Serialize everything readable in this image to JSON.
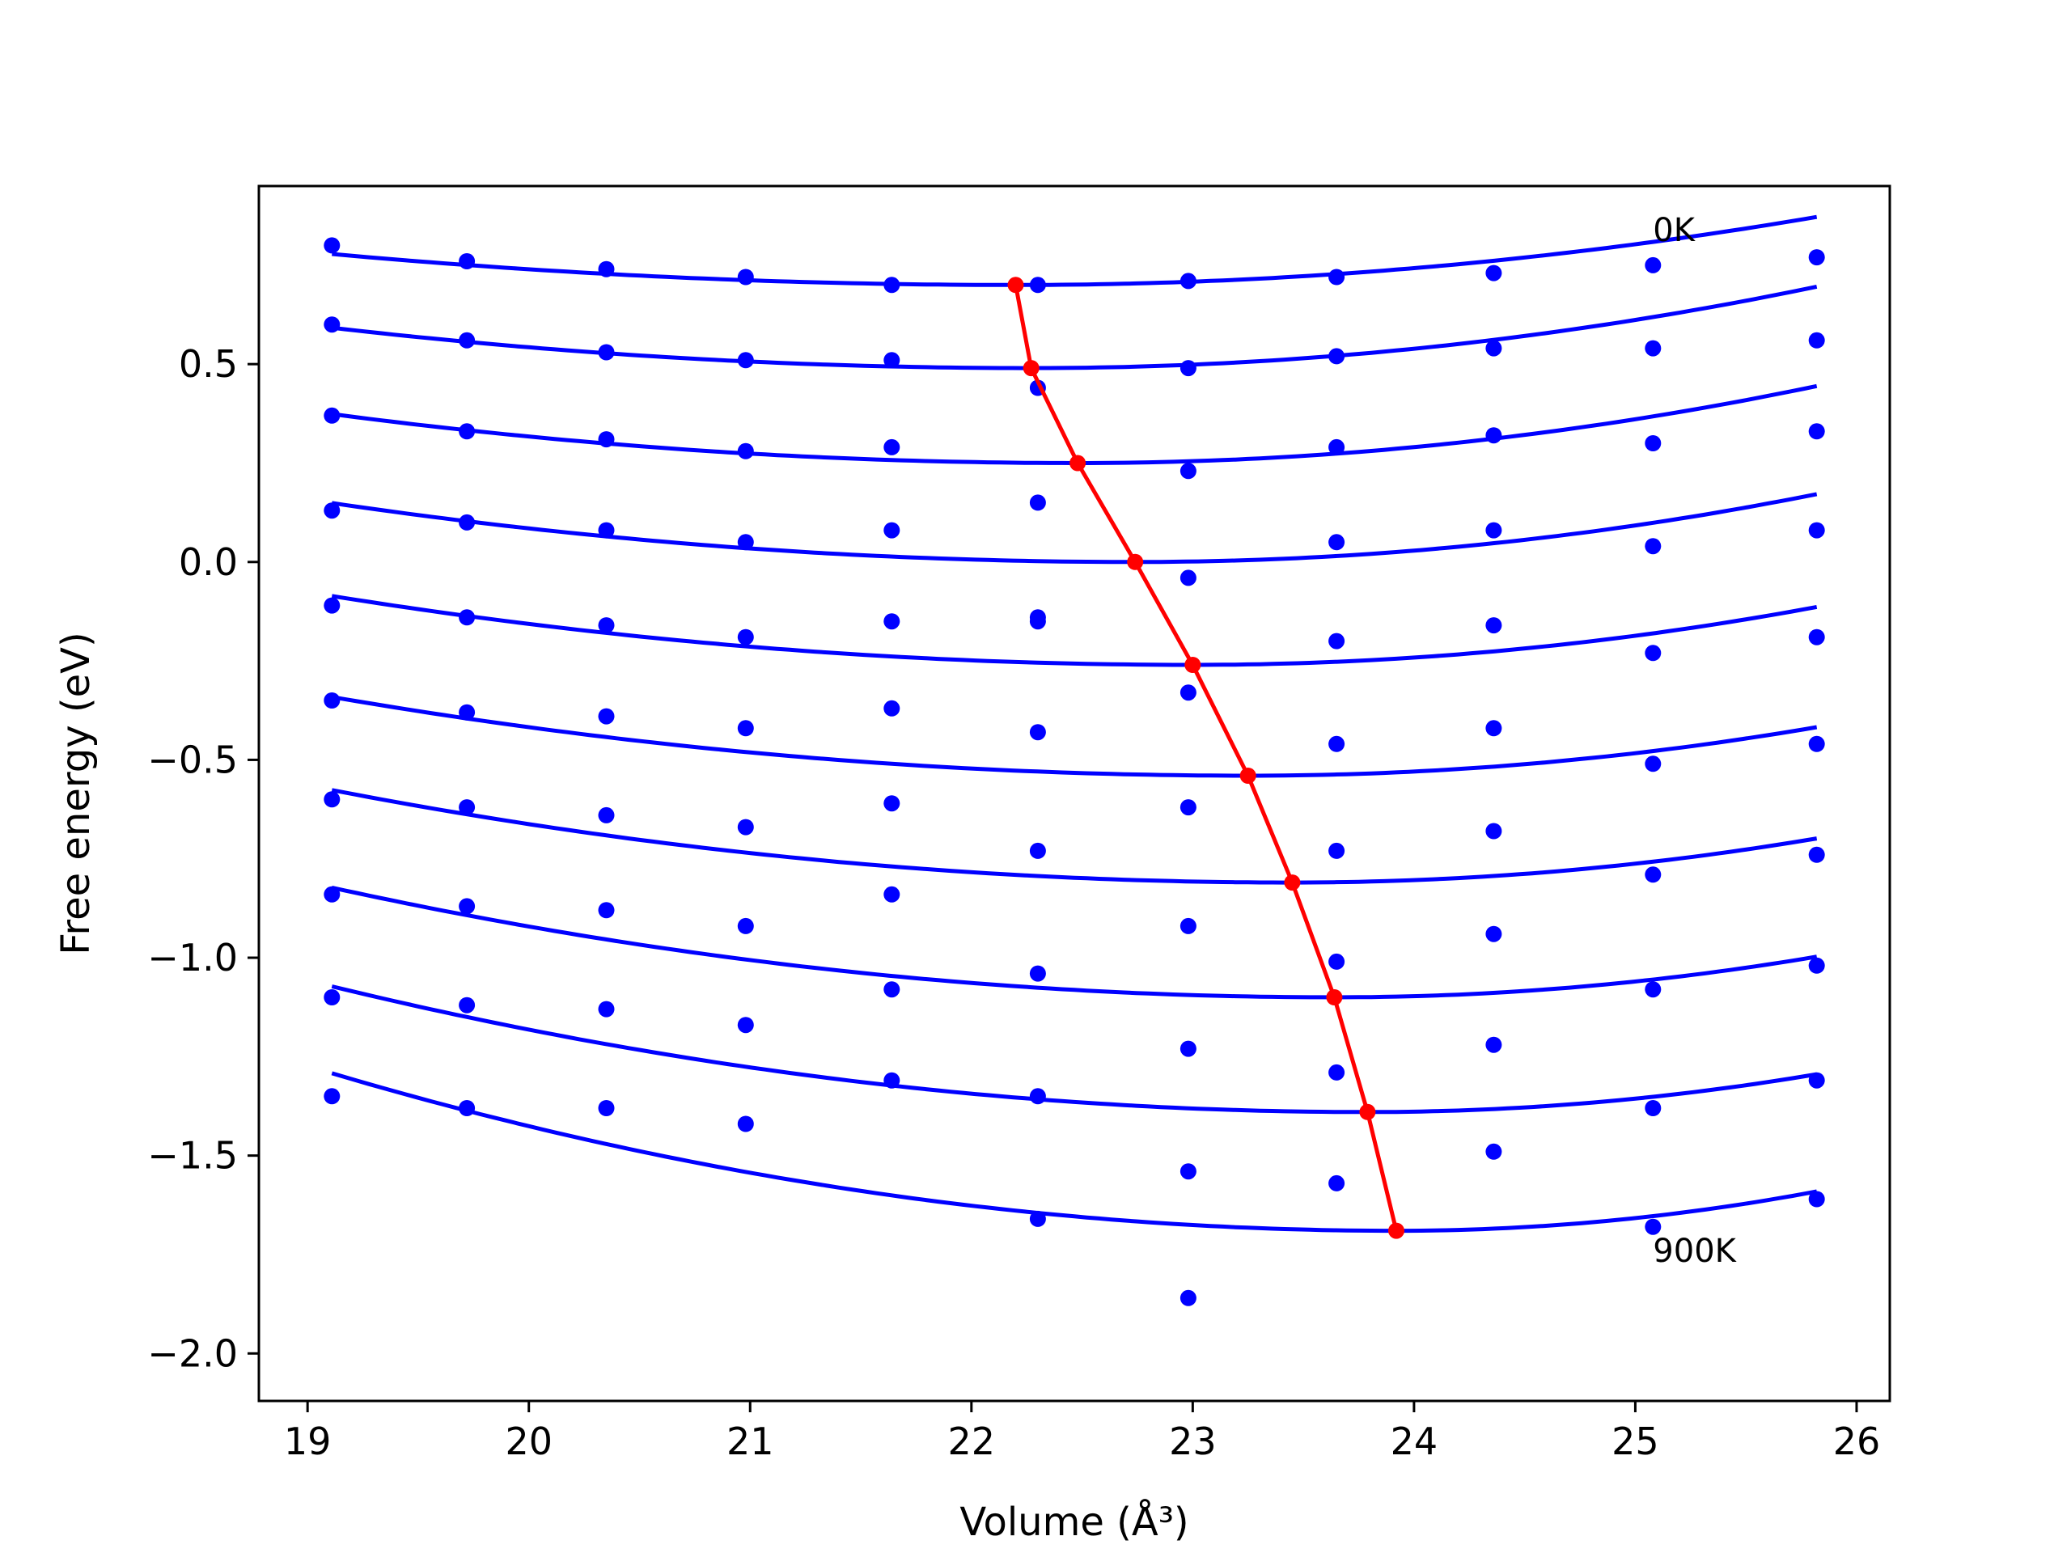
{
  "chart_data": {
    "type": "scatter",
    "xlabel": "Volume (Å³)",
    "ylabel": "Free energy (eV)",
    "xlim": [
      18.78,
      26.15
    ],
    "ylim": [
      -2.12,
      0.95
    ],
    "x_ticks": [
      19,
      20,
      21,
      22,
      23,
      24,
      25,
      26
    ],
    "y_ticks": [
      0.5,
      0.0,
      -0.5,
      -1.0,
      -1.5,
      -2.0
    ],
    "x_tick_labels": [
      "19",
      "20",
      "21",
      "22",
      "23",
      "24",
      "25",
      "26"
    ],
    "y_tick_labels": [
      "0.5",
      "0.0",
      "−0.5",
      "−1.0",
      "−1.5",
      "−2.0"
    ],
    "annotations": [
      {
        "text": "0K",
        "x": 25.08,
        "y": 0.84
      },
      {
        "text": "900K",
        "x": 25.08,
        "y": -1.74
      }
    ],
    "volumes": [
      19.11,
      19.72,
      20.35,
      20.98,
      21.64,
      22.3,
      22.98,
      23.65,
      24.36,
      25.08,
      25.82
    ],
    "series": [
      {
        "label": "0K",
        "points": [
          0.8,
          0.76,
          0.74,
          0.72,
          0.7,
          0.7,
          0.71,
          0.72,
          0.73,
          0.75,
          0.77
        ],
        "fit": {
          "vmin": 19.11,
          "vmax": 25.82,
          "vertex_x": 22.2,
          "vertex_y": 0.7,
          "curv": 0.0082
        }
      },
      {
        "label": "",
        "points": [
          0.6,
          0.56,
          0.53,
          0.51,
          0.51,
          0.44,
          0.49,
          0.52,
          0.54,
          0.54,
          0.56
        ],
        "fit": {
          "vmin": 19.11,
          "vmax": 25.82,
          "vertex_x": 22.27,
          "vertex_y": 0.49,
          "curv": 0.0102
        }
      },
      {
        "label": "",
        "points": [
          0.37,
          0.33,
          0.31,
          0.28,
          0.29,
          0.15,
          0.23,
          0.29,
          0.32,
          0.3,
          0.33
        ],
        "fit": {
          "vmin": 19.11,
          "vmax": 25.82,
          "vertex_x": 22.48,
          "vertex_y": 0.25,
          "curv": 0.0109
        }
      },
      {
        "label": "",
        "points": [
          0.13,
          0.1,
          0.08,
          0.05,
          0.08,
          -0.15,
          -0.04,
          0.05,
          0.08,
          0.04,
          0.08
        ],
        "fit": {
          "vmin": 19.11,
          "vmax": 25.82,
          "vertex_x": 22.74,
          "vertex_y": 0.0,
          "curv": 0.0113
        }
      },
      {
        "label": "",
        "points": [
          -0.11,
          -0.14,
          -0.16,
          -0.19,
          -0.15,
          -0.14,
          -0.33,
          -0.2,
          -0.16,
          -0.23,
          -0.19
        ],
        "fit": {
          "vmin": 19.11,
          "vmax": 25.82,
          "vertex_x": 23.0,
          "vertex_y": -0.26,
          "curv": 0.0115
        }
      },
      {
        "label": "",
        "points": [
          -0.35,
          -0.38,
          -0.39,
          -0.42,
          -0.37,
          -0.43,
          -0.62,
          -0.46,
          -0.42,
          -0.51,
          -0.46
        ],
        "fit": {
          "vmin": 19.11,
          "vmax": 25.82,
          "vertex_x": 23.25,
          "vertex_y": -0.54,
          "curv": 0.0116
        }
      },
      {
        "label": "",
        "points": [
          -0.6,
          -0.62,
          -0.64,
          -0.67,
          -0.61,
          -0.73,
          -0.92,
          -0.73,
          -0.68,
          -0.79,
          -0.74
        ],
        "fit": {
          "vmin": 19.11,
          "vmax": 25.82,
          "vertex_x": 23.45,
          "vertex_y": -0.81,
          "curv": 0.0124
        }
      },
      {
        "label": "",
        "points": [
          -0.84,
          -0.87,
          -0.88,
          -0.92,
          -0.84,
          -1.04,
          -1.23,
          -1.01,
          -0.94,
          -1.08,
          -1.02
        ],
        "fit": {
          "vmin": 19.11,
          "vmax": 25.82,
          "vertex_x": 23.64,
          "vertex_y": -1.1,
          "curv": 0.0135
        }
      },
      {
        "label": "",
        "points": [
          -1.1,
          -1.12,
          -1.13,
          -1.17,
          -1.08,
          -1.35,
          -1.54,
          -1.29,
          -1.22,
          -1.38,
          -1.31
        ],
        "fit": {
          "vmin": 19.11,
          "vmax": 25.82,
          "vertex_x": 23.79,
          "vertex_y": -1.39,
          "curv": 0.0145
        }
      },
      {
        "label": "900K",
        "points": [
          -1.35,
          -1.38,
          -1.38,
          -1.42,
          -1.31,
          -1.66,
          -1.86,
          -1.57,
          -1.49,
          -1.68,
          -1.61
        ],
        "fit": {
          "vmin": 19.11,
          "vmax": 25.82,
          "vertex_x": 23.92,
          "vertex_y": -1.69,
          "curv": 0.0172
        }
      }
    ],
    "minima_line": {
      "x": [
        22.2,
        22.27,
        22.48,
        22.74,
        23.0,
        23.25,
        23.45,
        23.64,
        23.79,
        23.92
      ],
      "y": [
        0.7,
        0.49,
        0.25,
        0.0,
        -0.26,
        -0.54,
        -0.81,
        -1.1,
        -1.39,
        -1.69
      ]
    },
    "colors": {
      "points": "#0000ff",
      "fit": "#0000ff",
      "minima": "#ff0000",
      "axes": "#000000"
    }
  }
}
